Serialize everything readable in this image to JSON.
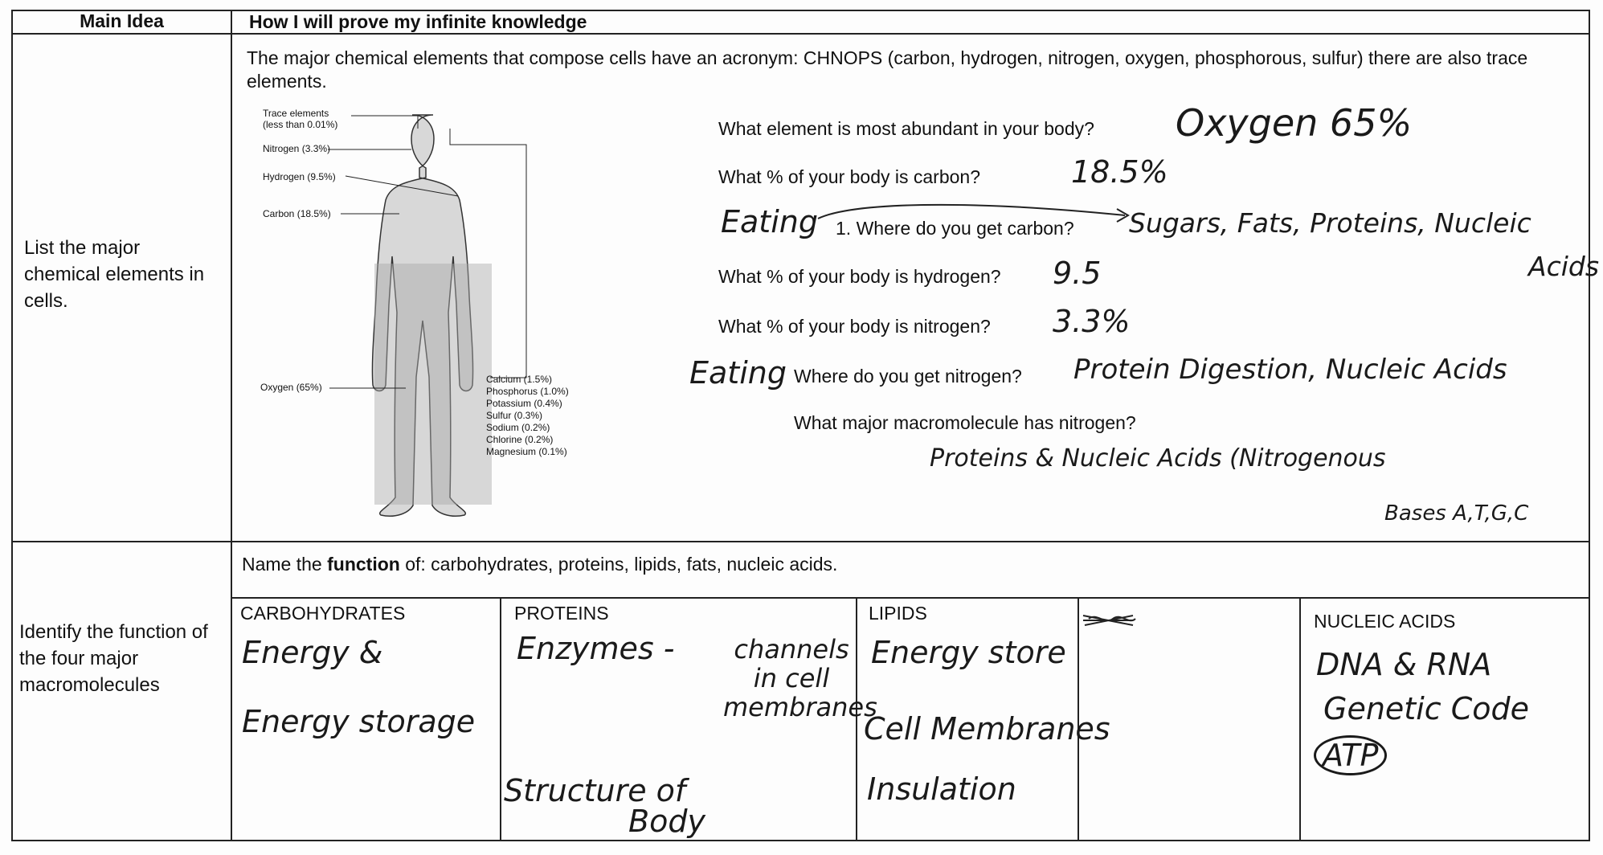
{
  "header": {
    "main_idea": "Main Idea",
    "proof": "How I will prove my infinite knowledge"
  },
  "rows": [
    {
      "main_idea": "List the major chemical elements in cells.",
      "intro": "The major chemical elements that compose cells have an acronym: CHNOPS (carbon, hydrogen, nitrogen, oxygen, phosphorous, sulfur) there are also trace elements.",
      "figure": {
        "labels": [
          "Trace elements (less than 0.01%)",
          "Nitrogen (3.3%)",
          "Hydrogen (9.5%)",
          "Carbon (18.5%)",
          "Oxygen (65%)"
        ],
        "list": [
          "Calcium (1.5%)",
          "Phosphorus (1.0%)",
          "Potassium (0.4%)",
          "Sulfur (0.3%)",
          "Sodium (0.2%)",
          "Chlorine (0.2%)",
          "Magnesium (0.1%)"
        ]
      },
      "questions": [
        {
          "question": "What element is most abundant in your body?",
          "answer": "Oxygen 65%"
        },
        {
          "question": "What % of your body is carbon?",
          "answer": "18.5%"
        },
        {
          "note": "Eating",
          "question": "1.   Where do you get carbon?",
          "answer": "Sugars, Fats, Proteins, Nucleic",
          "answer_2": "Acids"
        },
        {
          "question": "What % of your body is hydrogen?",
          "answer": "9.5"
        },
        {
          "question": "What % of your body is nitrogen?",
          "answer": "3.3%"
        },
        {
          "note": "Eating",
          "question": "Where do you get nitrogen?",
          "answer": "Protein Digestion, Nucleic Acids"
        },
        {
          "question": "What major macromolecule has nitrogen?",
          "answer": "Proteins & Nucleic Acids (Nitrogenous",
          "answer_2": "Bases A,T,G,C"
        }
      ]
    },
    {
      "main_idea": "Identify the function of the four major macromolecules",
      "prompt": [
        "Name the ",
        "function",
        " of: carbohydrates, proteins, lipids, fats, nucleic acids."
      ],
      "columns": [
        {
          "heading": "CARBOHYDRATES",
          "answers": [
            "Energy &",
            "Energy storage"
          ]
        },
        {
          "heading": "PROTEINS",
          "answers": [
            "Enzymes -",
            "channels in cell membranes",
            "Structure of",
            "Body"
          ]
        },
        {
          "heading": "LIPIDS",
          "answers": [
            "Energy store",
            "Cell Membranes",
            "Insulation"
          ]
        },
        {
          "heading": "NUCLEIC ACIDS",
          "answers": [
            "DNA & RNA",
            "Genetic Code",
            "ATP"
          ]
        }
      ]
    }
  ]
}
